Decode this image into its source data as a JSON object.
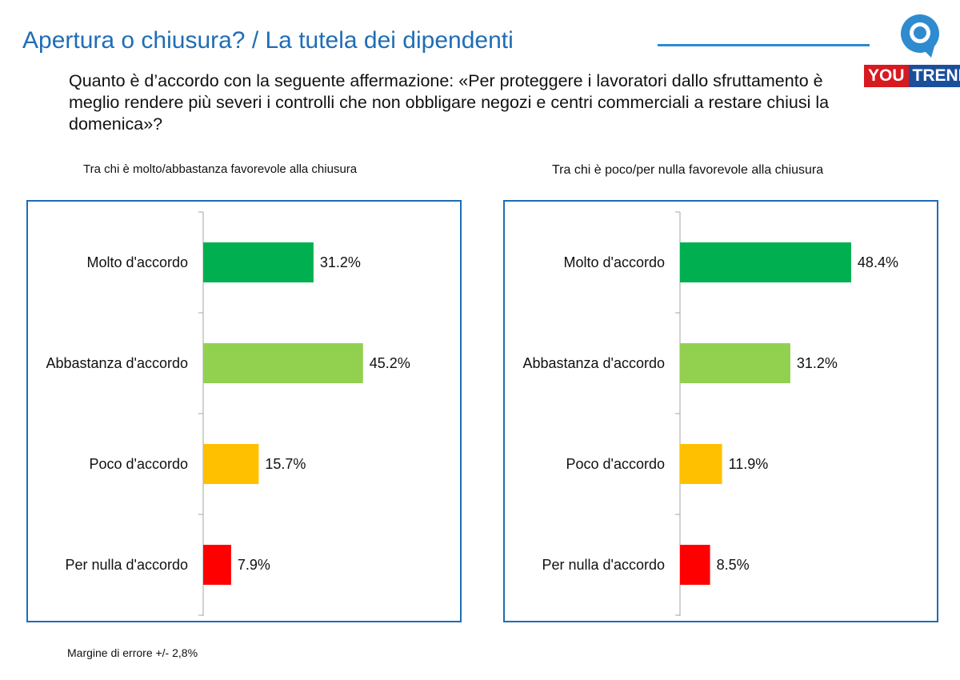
{
  "header": {
    "title": "Apertura o chiusura? / La tutela dei dipendenti",
    "question": "Quanto è d’accordo con la seguente affermazione: «Per proteggere i lavoratori dallo sfruttamento è meglio rendere più severi i controlli che non obbligare negozi e centri commerciali a restare chiusi la domenica»?"
  },
  "logo": {
    "you": "YOU",
    "trend": "TREND",
    "accent": "#2e8bd0"
  },
  "colors": {
    "title": "#1f6db5",
    "molto": "#00b050",
    "abbastanza": "#92d050",
    "poco": "#ffc000",
    "per_nulla": "#ff0000"
  },
  "chart_data": [
    {
      "type": "bar",
      "orientation": "horizontal",
      "title": "Tra chi è molto/abbastanza favorevole alla chiusura",
      "categories": [
        "Molto d'accordo",
        "Abbastanza d'accordo",
        "Poco d'accordo",
        "Per nulla d'accordo"
      ],
      "values": [
        31.2,
        45.2,
        15.7,
        7.9
      ],
      "labels": [
        "31.2%",
        "45.2%",
        "15.7%",
        "7.9%"
      ],
      "colors": [
        "#00b050",
        "#92d050",
        "#ffc000",
        "#ff0000"
      ],
      "xlim": [
        0,
        100
      ],
      "grid": false
    },
    {
      "type": "bar",
      "orientation": "horizontal",
      "title": "Tra chi è poco/per nulla favorevole alla chiusura",
      "categories": [
        "Molto d'accordo",
        "Abbastanza d'accordo",
        "Poco d'accordo",
        "Per nulla d'accordo"
      ],
      "values": [
        48.4,
        31.2,
        11.9,
        8.5
      ],
      "labels": [
        "48.4%",
        "31.2%",
        "11.9%",
        "8.5%"
      ],
      "colors": [
        "#00b050",
        "#92d050",
        "#ffc000",
        "#ff0000"
      ],
      "xlim": [
        0,
        100
      ],
      "grid": false
    }
  ],
  "footer": {
    "note": "Margine di errore +/- 2,8%"
  }
}
